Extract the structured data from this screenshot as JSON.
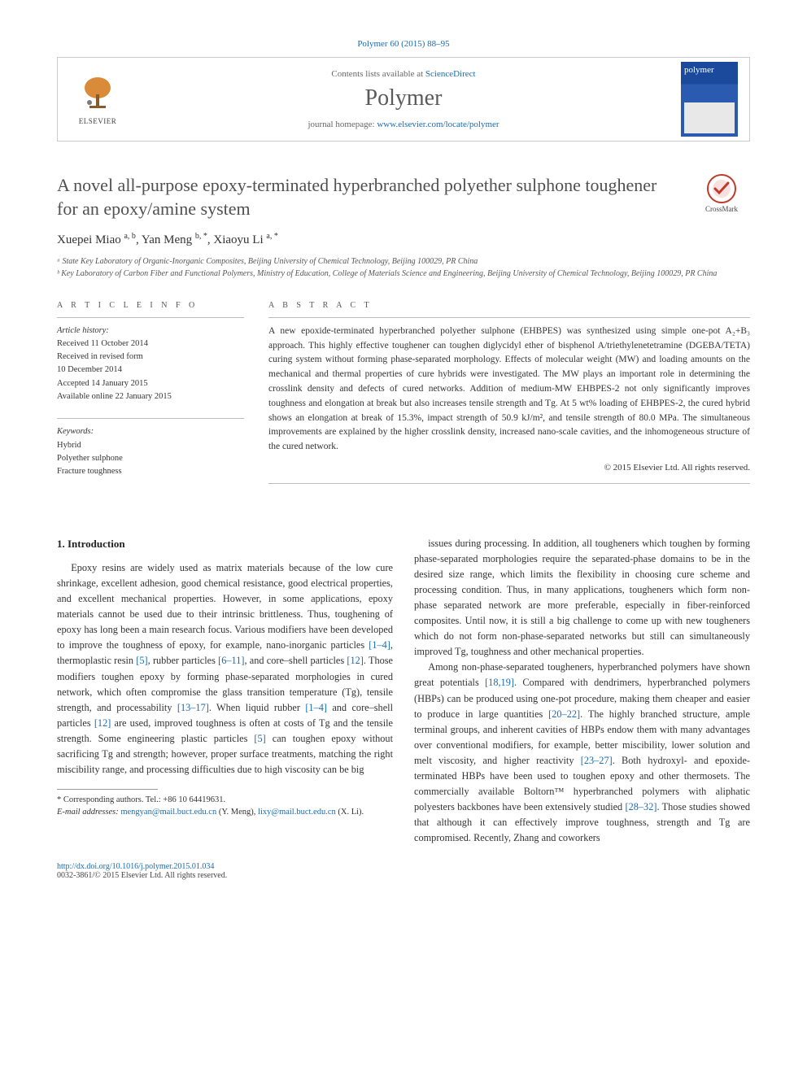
{
  "citation": "Polymer 60 (2015) 88–95",
  "header": {
    "contents_prefix": "Contents lists available at ",
    "contents_link": "ScienceDirect",
    "journal": "Polymer",
    "homepage_prefix": "journal homepage: ",
    "homepage_url": "www.elsevier.com/locate/polymer",
    "publisher_name": "ELSEVIER",
    "cover_label": "polymer"
  },
  "crossmark_label": "CrossMark",
  "title": "A novel all-purpose epoxy-terminated hyperbranched polyether sulphone toughener for an epoxy/amine system",
  "authors_html": "Xuepei Miao <span class='sup'>a, b</span>, Yan Meng <span class='sup'>b, *</span>, Xiaoyu Li <span class='sup'>a, *</span>",
  "affiliations": [
    "ᵃ State Key Laboratory of Organic-Inorganic Composites, Beijing University of Chemical Technology, Beijing 100029, PR China",
    "ᵇ Key Laboratory of Carbon Fiber and Functional Polymers, Ministry of Education, College of Materials Science and Engineering, Beijing University of Chemical Technology, Beijing 100029, PR China"
  ],
  "info": {
    "heading": "A R T I C L E   I N F O",
    "history_label": "Article history:",
    "history": [
      "Received 11 October 2014",
      "Received in revised form",
      "10 December 2014",
      "Accepted 14 January 2015",
      "Available online 22 January 2015"
    ],
    "keywords_label": "Keywords:",
    "keywords": [
      "Hybrid",
      "Polyether sulphone",
      "Fracture toughness"
    ]
  },
  "abstract": {
    "heading": "A B S T R A C T",
    "text": "A new epoxide-terminated hyperbranched polyether sulphone (EHBPES) was synthesized using simple one-pot A₂+B₃ approach. This highly effective toughener can toughen diglycidyl ether of bisphenol A/triethylenetetramine (DGEBA/TETA) curing system without forming phase-separated morphology. Effects of molecular weight (MW) and loading amounts on the mechanical and thermal properties of cure hybrids were investigated. The MW plays an important role in determining the crosslink density and defects of cured networks. Addition of medium-MW EHBPES-2 not only significantly improves toughness and elongation at break but also increases tensile strength and Tg. At 5 wt% loading of EHBPES-2, the cured hybrid shows an elongation at break of 15.3%, impact strength of 50.9 kJ/m², and tensile strength of 80.0 MPa. The simultaneous improvements are explained by the higher crosslink density, increased nano-scale cavities, and the inhomogeneous structure of the cured network.",
    "copyright": "© 2015 Elsevier Ltd. All rights reserved."
  },
  "body": {
    "section_heading": "1. Introduction",
    "para1_pre": "Epoxy resins are widely used as matrix materials because of the low cure shrinkage, excellent adhesion, good chemical resistance, good electrical properties, and excellent mechanical properties. However, in some applications, epoxy materials cannot be used due to their intrinsic brittleness. Thus, toughening of epoxy has long been a main research focus. Various modifiers have been developed to improve the toughness of epoxy, for example, nano-inorganic particles ",
    "ref1": "[1–4]",
    "para1_b": ", thermoplastic resin ",
    "ref2": "[5]",
    "para1_c": ", rubber particles ",
    "ref3": "[6–11]",
    "para1_d": ", and core–shell particles ",
    "ref4": "[12]",
    "para1_e": ". Those modifiers toughen epoxy by forming phase-separated morphologies in cured network, which often compromise the glass transition temperature (Tg), tensile strength, and processability ",
    "ref5": "[13–17]",
    "para1_f": ". When liquid rubber ",
    "ref6": "[1–4]",
    "para1_g": " and core–shell particles ",
    "ref7": "[12]",
    "para1_h": " are used, improved toughness is often at costs of Tg and the tensile strength. Some engineering plastic particles ",
    "ref8": "[5]",
    "para1_i": " can toughen epoxy without sacrificing Tg and strength; however, proper surface treatments, matching the right miscibility range, and processing difficulties due to high viscosity can be big",
    "para2": "issues during processing. In addition, all tougheners which toughen by forming phase-separated morphologies require the separated-phase domains to be in the desired size range, which limits the flexibility in choosing cure scheme and processing condition. Thus, in many applications, tougheners which form non-phase separated network are more preferable, especially in fiber-reinforced composites. Until now, it is still a big challenge to come up with new tougheners which do not form non-phase-separated networks but still can simultaneously improved Tg, toughness and other mechanical properties.",
    "para3_a": "Among non-phase-separated tougheners, hyperbranched polymers have shown great potentials ",
    "ref9": "[18,19]",
    "para3_b": ". Compared with dendrimers, hyperbranched polymers (HBPs) can be produced using one-pot procedure, making them cheaper and easier to produce in large quantities ",
    "ref10": "[20–22]",
    "para3_c": ". The highly branched structure, ample terminal groups, and inherent cavities of HBPs endow them with many advantages over conventional modifiers, for example, better miscibility, lower solution and melt viscosity, and higher reactivity ",
    "ref11": "[23–27]",
    "para3_d": ". Both hydroxyl- and epoxide-terminated HBPs have been used to toughen epoxy and other thermosets. The commercially available Boltorn™ hyperbranched polymers with aliphatic polyesters backbones have been extensively studied ",
    "ref12": "[28–32]",
    "para3_e": ". Those studies showed that although it can effectively improve toughness, strength and Tg are compromised. Recently, Zhang and coworkers"
  },
  "footnotes": {
    "corr": "* Corresponding authors. Tel.: +86 10 64419631.",
    "email_label": "E-mail addresses: ",
    "email1": "mengyan@mail.buct.edu.cn",
    "email1_who": " (Y. Meng), ",
    "email2": "lixy@mail.buct.edu.cn",
    "email2_who": " (X. Li)."
  },
  "footer": {
    "doi": "http://dx.doi.org/10.1016/j.polymer.2015.01.034",
    "issn_line": "0032-3861/© 2015 Elsevier Ltd. All rights reserved."
  },
  "colors": {
    "link": "#1a6bb3",
    "border": "#cccccc",
    "text": "#333333"
  }
}
